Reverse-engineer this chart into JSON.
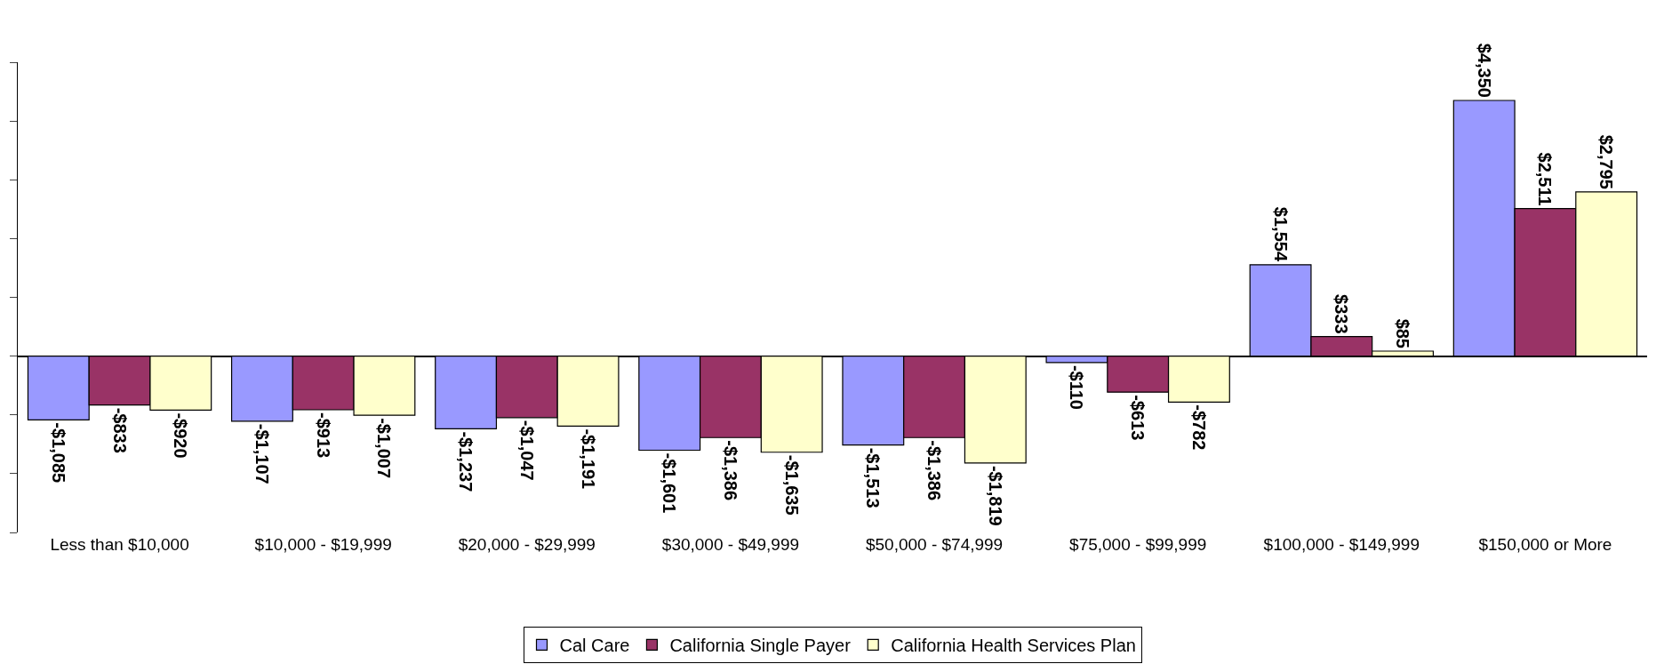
{
  "chart_data": {
    "type": "bar",
    "categories": [
      "Less than $10,000",
      "$10,000 - $19,999",
      "$20,000 - $29,999",
      "$30,000 - $49,999",
      "$50,000 - $74,999",
      "$75,000 - $99,999",
      "$100,000 - $149,999",
      "$150,000 or More"
    ],
    "series": [
      {
        "name": "Cal Care",
        "color": "#9999ff",
        "values": [
          -1085,
          -1107,
          -1237,
          -1601,
          -1513,
          -110,
          1554,
          4350
        ],
        "value_labels": [
          "-$1,085",
          "-$1,107",
          "-$1,237",
          "-$1,601",
          "-$1,513",
          "-$110",
          "$1,554",
          "$4,350"
        ]
      },
      {
        "name": "California Single Payer",
        "color": "#993366",
        "values": [
          -833,
          -913,
          -1047,
          -1386,
          -1386,
          -613,
          333,
          2511
        ],
        "value_labels": [
          "-$833",
          "-$913",
          "-$1,047",
          "-$1,386",
          "-$1,386",
          "-$613",
          "$333",
          "$2,511"
        ]
      },
      {
        "name": "California Health Services Plan",
        "color": "#ffffcc",
        "values": [
          -920,
          -1007,
          -1191,
          -1635,
          -1819,
          -782,
          85,
          2795
        ],
        "value_labels": [
          "-$920",
          "-$1,007",
          "-$1,191",
          "-$1,635",
          "-$1,819",
          "-$782",
          "$85",
          "$2,795"
        ]
      }
    ],
    "ylim": [
      -3000,
      5000
    ],
    "yticks": [
      {
        "value": -3000,
        "label": null
      },
      {
        "value": -2000,
        "label": null
      },
      {
        "value": -1000,
        "label": null
      },
      {
        "value": 0,
        "label": null
      },
      {
        "value": 1000,
        "label": null
      },
      {
        "value": 2000,
        "label": null
      },
      {
        "value": 3000,
        "label": null
      },
      {
        "value": 4000,
        "label": null
      },
      {
        "value": 5000,
        "label": null
      }
    ],
    "tick_labels": "x",
    "grid": false,
    "legend": "bottom"
  }
}
